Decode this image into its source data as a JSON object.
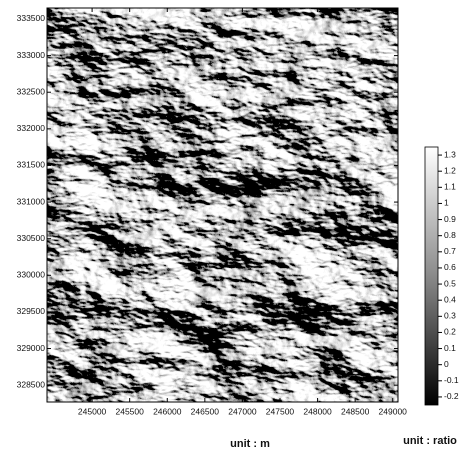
{
  "map": {
    "x_axis": {
      "label": "unit : m",
      "lim": [
        244400,
        249070
      ],
      "ticks": [
        245000,
        245500,
        246000,
        246500,
        247000,
        247500,
        248000,
        248500,
        249000
      ]
    },
    "y_axis": {
      "lim": [
        328270,
        333650
      ],
      "ticks": [
        328500,
        329000,
        329500,
        330000,
        330500,
        331000,
        331500,
        332000,
        332500,
        333000,
        333500
      ]
    },
    "colorbar": {
      "label": "unit : ratio",
      "lim": [
        -0.25,
        1.35
      ],
      "ticks": [
        1.3,
        1.2,
        1.1,
        1,
        0.9,
        0.8,
        0.7,
        0.6,
        0.5,
        0.4,
        0.3,
        0.2,
        0.1,
        0,
        -0.1,
        -0.2
      ]
    }
  }
}
